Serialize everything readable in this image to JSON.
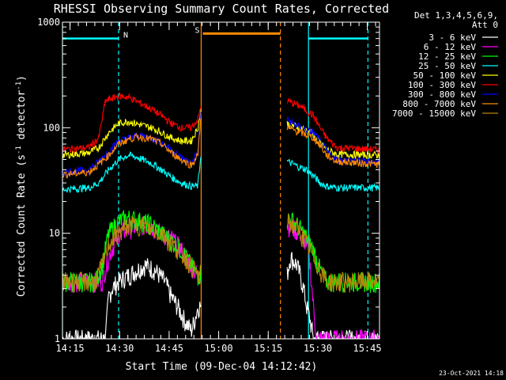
{
  "chart_data": {
    "type": "line",
    "title": "RHESSI Observing Summary Count Rates, Corrected",
    "xlabel": "Start Time (09-Dec-04 14:12:42)",
    "ylabel": "Corrected Count Rate (s",
    "ylabel_sup1": "-1",
    "ylabel_mid": " detector",
    "ylabel_sup2": "-1",
    "ylabel_end": ")",
    "yscale": "log",
    "ylim": [
      1,
      1000
    ],
    "xlim_minutes": [
      0,
      96
    ],
    "y_ticks": [
      {
        "value": 1,
        "label": "1"
      },
      {
        "value": 10,
        "label": "10"
      },
      {
        "value": 100,
        "label": "100"
      },
      {
        "value": 1000,
        "label": "1000"
      }
    ],
    "x_ticks": [
      {
        "minute": 2.3,
        "label": "14:15"
      },
      {
        "minute": 17.3,
        "label": "14:30"
      },
      {
        "minute": 32.3,
        "label": "14:45"
      },
      {
        "minute": 47.3,
        "label": "15:00"
      },
      {
        "minute": 62.3,
        "label": "15:15"
      },
      {
        "minute": 77.3,
        "label": "15:30"
      },
      {
        "minute": 92.3,
        "label": "15:45"
      }
    ],
    "legend_header": [
      "Det 1,3,4,5,6,9,",
      "Att 0"
    ],
    "legend_position": "right",
    "footer_date": "23-Oct-2021 14:18",
    "gaps": [
      [
        42,
        68
      ]
    ],
    "series": [
      {
        "name": "3 - 6 keV",
        "color": "#ffffff",
        "x": [
          0,
          10,
          13,
          14,
          15,
          17,
          20,
          25,
          28,
          31,
          33,
          35,
          37,
          39,
          40,
          41,
          68,
          69,
          71,
          72,
          73,
          74,
          75,
          76,
          77,
          78,
          96
        ],
        "y": [
          1,
          1,
          1,
          2.5,
          3,
          3.5,
          4,
          5,
          4.5,
          3.5,
          2.5,
          2,
          1.5,
          1.2,
          1.5,
          2,
          4,
          6,
          5,
          4,
          3,
          2,
          1.5,
          1,
          1,
          1,
          1
        ]
      },
      {
        "name": "6 - 12 keV",
        "color": "#ff00ff",
        "x": [
          0,
          12,
          14,
          17,
          20,
          24,
          27,
          30,
          33,
          36,
          39,
          41,
          68,
          70,
          72,
          74,
          75,
          76,
          77,
          96
        ],
        "y": [
          3.5,
          3.5,
          6,
          10,
          11,
          12,
          11.5,
          10,
          9,
          7,
          5,
          4,
          12,
          11,
          10,
          8,
          5,
          2,
          1,
          1
        ]
      },
      {
        "name": "12 - 25 keV",
        "color": "#00ff00",
        "x": [
          0,
          10,
          12,
          14,
          17,
          20,
          24,
          27,
          30,
          33,
          36,
          39,
          41,
          68,
          70,
          72,
          74,
          76,
          78,
          80,
          96
        ],
        "y": [
          3.5,
          3.5,
          5,
          10,
          13,
          14,
          13,
          12,
          10,
          8.5,
          7,
          5,
          4,
          14,
          13,
          11,
          9,
          7,
          4.5,
          3.5,
          3.5
        ]
      },
      {
        "name": "25 - 50 keV",
        "color": "#00ffff",
        "x": [
          0,
          8,
          11,
          14,
          17,
          20,
          23,
          27,
          30,
          33,
          36,
          39,
          41,
          42,
          68,
          70,
          72,
          74,
          76,
          78,
          80,
          83,
          96
        ],
        "y": [
          26,
          27,
          30,
          40,
          50,
          55,
          52,
          46,
          40,
          34,
          30,
          28,
          28,
          60,
          48,
          45,
          42,
          40,
          35,
          30,
          28,
          27,
          27
        ]
      },
      {
        "name": "50 - 100 keV",
        "color": "#ffff00",
        "x": [
          0,
          8,
          11,
          14,
          17,
          20,
          23,
          27,
          30,
          33,
          36,
          39,
          41,
          42,
          68,
          70,
          72,
          74,
          76,
          78,
          80,
          83,
          96
        ],
        "y": [
          55,
          58,
          65,
          90,
          110,
          115,
          108,
          100,
          90,
          80,
          75,
          75,
          100,
          150,
          110,
          105,
          100,
          95,
          85,
          72,
          62,
          56,
          55
        ]
      },
      {
        "name": "100 - 300 keV",
        "color": "#ff0000",
        "x": [
          0,
          8,
          11,
          13,
          17,
          20,
          23,
          27,
          30,
          33,
          36,
          39,
          41,
          42,
          68,
          70,
          72,
          74,
          76,
          78,
          80,
          83,
          96
        ],
        "y": [
          62,
          65,
          80,
          180,
          200,
          195,
          175,
          150,
          130,
          110,
          100,
          100,
          120,
          160,
          180,
          170,
          160,
          145,
          130,
          100,
          80,
          65,
          62
        ]
      },
      {
        "name": "300 - 800 keV",
        "color": "#0000ff",
        "x": [
          0,
          8,
          11,
          14,
          17,
          20,
          23,
          27,
          30,
          33,
          36,
          39,
          41,
          42,
          68,
          70,
          72,
          74,
          76,
          78,
          80,
          83,
          96
        ],
        "y": [
          38,
          40,
          48,
          60,
          75,
          80,
          85,
          80,
          72,
          62,
          52,
          46,
          60,
          150,
          120,
          110,
          100,
          95,
          90,
          75,
          60,
          50,
          47
        ]
      },
      {
        "name": "800 - 7000 keV",
        "color": "#ff8c00",
        "x": [
          0,
          8,
          11,
          14,
          17,
          20,
          23,
          27,
          30,
          33,
          36,
          39,
          41,
          42,
          68,
          70,
          72,
          74,
          76,
          78,
          80,
          83,
          96
        ],
        "y": [
          36,
          38,
          45,
          55,
          70,
          78,
          82,
          78,
          70,
          58,
          50,
          44,
          55,
          140,
          100,
          95,
          90,
          85,
          80,
          68,
          55,
          48,
          45
        ]
      },
      {
        "name": "7000 - 15000 keV",
        "color": "#b8860b",
        "x": [
          0,
          10,
          12,
          14,
          17,
          20,
          24,
          27,
          30,
          33,
          36,
          39,
          41,
          68,
          70,
          72,
          74,
          76,
          78,
          80,
          96
        ],
        "y": [
          3.5,
          3.5,
          5,
          8,
          10,
          12,
          12,
          11,
          10,
          8,
          6.5,
          5,
          4,
          13,
          12,
          10,
          8,
          6,
          4.5,
          3.5,
          3.5
        ]
      }
    ],
    "annotations": [
      {
        "label": "N",
        "color": "#00ffff",
        "bar_minutes": [
          0,
          17
        ],
        "bar_value": 700,
        "marker_minute": 17
      },
      {
        "label": "S",
        "color": "#ff8c00",
        "bar_minutes": [
          42.5,
          66
        ],
        "bar_value": 780,
        "marker_minute": 42.5
      },
      {
        "label": "",
        "color": "#00ffff",
        "bar_minutes": [
          74.5,
          92.5
        ],
        "bar_value": 700,
        "marker_minute": 92.5
      }
    ],
    "vlines": [
      {
        "minute": 0,
        "color": "#00ffff",
        "style": "solid"
      },
      {
        "minute": 17,
        "color": "#00ffff",
        "style": "dashed"
      },
      {
        "minute": 42,
        "color": "#ff8c00",
        "style": "solid"
      },
      {
        "minute": 66,
        "color": "#ff8c00",
        "style": "dashed"
      },
      {
        "minute": 74.5,
        "color": "#00ffff",
        "style": "solid"
      },
      {
        "minute": 92.5,
        "color": "#00ffff",
        "style": "dashed"
      }
    ]
  }
}
